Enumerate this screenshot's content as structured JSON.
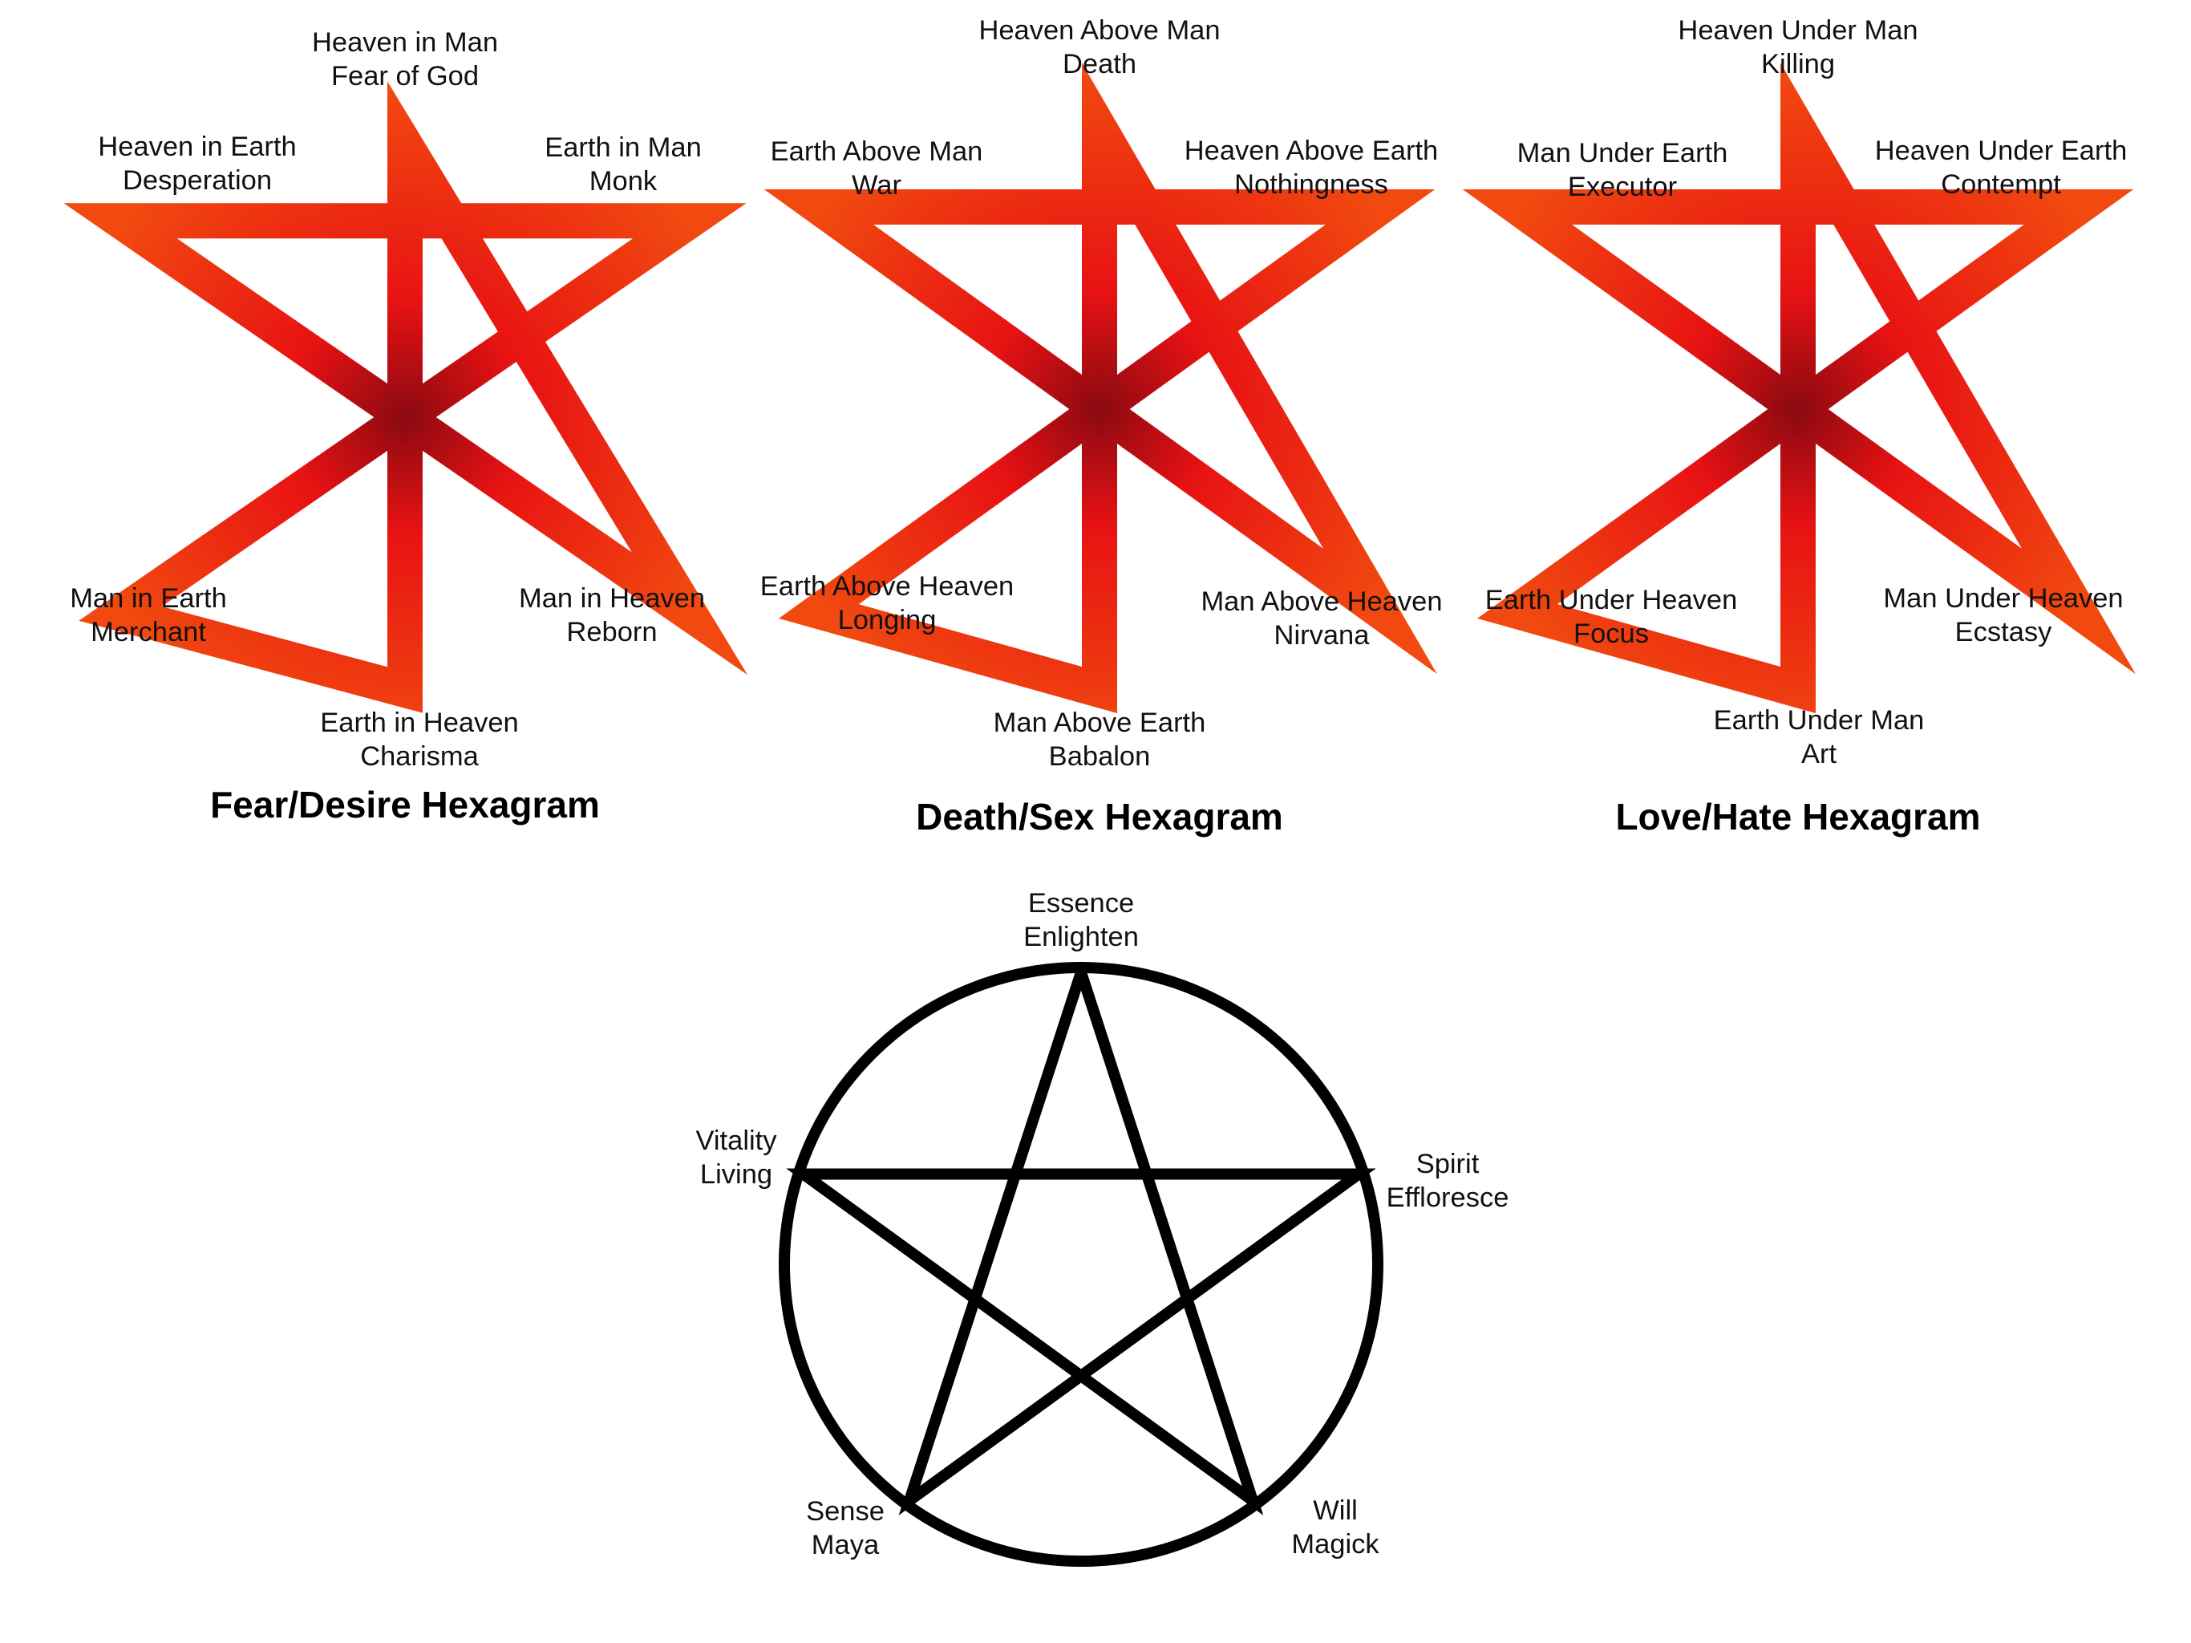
{
  "colors": {
    "star_light": "#ff5210",
    "star_mid": "#f51414",
    "star_dark": "#8a0a12",
    "pentagram": "#000000"
  },
  "hexagrams": [
    {
      "title": "Fear/Desire Hexagram",
      "points": [
        {
          "line1": "Heaven in Man",
          "line2": "Fear of God"
        },
        {
          "line1": "Earth in Man",
          "line2": "Monk"
        },
        {
          "line1": "Man in Heaven",
          "line2": "Reborn"
        },
        {
          "line1": "Earth in Heaven",
          "line2": "Charisma"
        },
        {
          "line1": "Man in Earth",
          "line2": "Merchant"
        },
        {
          "line1": "Heaven in Earth",
          "line2": "Desperation"
        }
      ]
    },
    {
      "title": "Death/Sex Hexagram",
      "points": [
        {
          "line1": "Heaven Above Man",
          "line2": "Death"
        },
        {
          "line1": "Heaven Above Earth",
          "line2": "Nothingness"
        },
        {
          "line1": "Man Above Heaven",
          "line2": "Nirvana"
        },
        {
          "line1": "Man Above Earth",
          "line2": "Babalon"
        },
        {
          "line1": "Earth Above Heaven",
          "line2": "Longing"
        },
        {
          "line1": "Earth Above Man",
          "line2": "War"
        }
      ]
    },
    {
      "title": "Love/Hate Hexagram",
      "points": [
        {
          "line1": "Heaven Under Man",
          "line2": "Killing"
        },
        {
          "line1": "Heaven Under Earth",
          "line2": "Contempt"
        },
        {
          "line1": "Man Under Heaven",
          "line2": "Ecstasy"
        },
        {
          "line1": "Earth Under Man",
          "line2": "Art"
        },
        {
          "line1": "Earth Under Heaven",
          "line2": "Focus"
        },
        {
          "line1": "Man Under Earth",
          "line2": "Executor"
        }
      ]
    }
  ],
  "pentagram": {
    "points": [
      {
        "line1": "Essence",
        "line2": "Enlighten"
      },
      {
        "line1": "Spirit",
        "line2": "Effloresce"
      },
      {
        "line1": "Will",
        "line2": "Magick"
      },
      {
        "line1": "Sense",
        "line2": "Maya"
      },
      {
        "line1": "Vitality",
        "line2": "Living"
      }
    ]
  }
}
